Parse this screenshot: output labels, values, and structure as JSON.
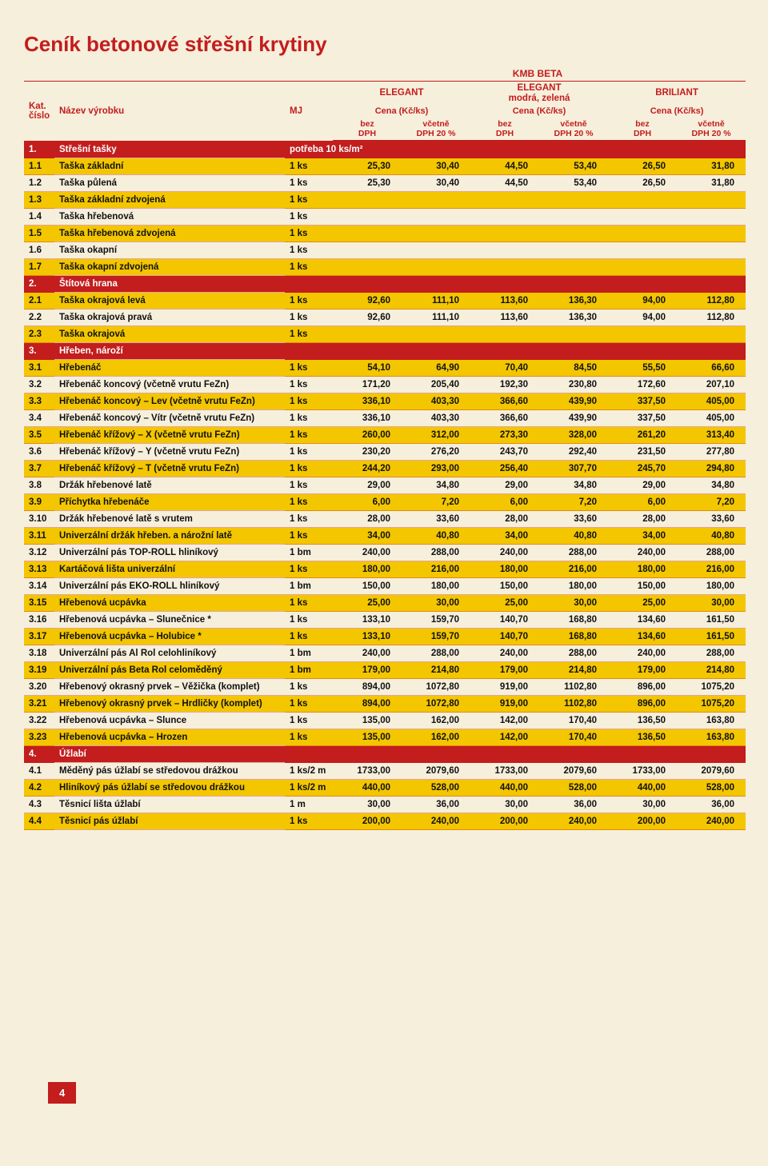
{
  "title": "Ceník betonové střešní krytiny",
  "brand_top": "KMB BETA",
  "header": {
    "kat": "Kat.\nčíslo",
    "nazev": "Název výrobku",
    "mj": "MJ",
    "products": [
      "ELEGANT",
      "ELEGANT\nmodrá, zelená",
      "BRILIANT"
    ],
    "cena": "Cena (Kč/ks)",
    "sub1": "bez\nDPH",
    "sub2": "včetně\nDPH 20 %"
  },
  "page_number": "4",
  "rows": [
    {
      "type": "section",
      "num": "1.",
      "name": "Střešní tašky",
      "mj": "potřeba 10 ks/m²"
    },
    {
      "type": "hl",
      "num": "1.1",
      "name": "Taška základní",
      "mj": "1 ks",
      "v": [
        "25,30",
        "30,40",
        "44,50",
        "53,40",
        "26,50",
        "31,80"
      ]
    },
    {
      "type": "",
      "num": "1.2",
      "name": "Taška půlená",
      "mj": "1 ks",
      "v": [
        "25,30",
        "30,40",
        "44,50",
        "53,40",
        "26,50",
        "31,80"
      ]
    },
    {
      "type": "hl",
      "num": "1.3",
      "name": "Taška základní zdvojená",
      "mj": "1 ks",
      "v": [
        "",
        "",
        "",
        "",
        "",
        ""
      ]
    },
    {
      "type": "",
      "num": "1.4",
      "name": "Taška hřebenová",
      "mj": "1 ks",
      "v": [
        "",
        "",
        "",
        "",
        "",
        ""
      ]
    },
    {
      "type": "hl",
      "num": "1.5",
      "name": "Taška hřebenová zdvojená",
      "mj": "1 ks",
      "v": [
        "",
        "",
        "",
        "",
        "",
        ""
      ]
    },
    {
      "type": "",
      "num": "1.6",
      "name": "Taška okapní",
      "mj": "1 ks",
      "v": [
        "",
        "",
        "",
        "",
        "",
        ""
      ]
    },
    {
      "type": "hl",
      "num": "1.7",
      "name": "Taška okapní zdvojená",
      "mj": "1 ks",
      "v": [
        "",
        "",
        "",
        "",
        "",
        ""
      ]
    },
    {
      "type": "section",
      "num": "2.",
      "name": "Štítová hrana",
      "mj": ""
    },
    {
      "type": "hl",
      "num": "2.1",
      "name": "Taška okrajová levá",
      "mj": "1 ks",
      "v": [
        "92,60",
        "111,10",
        "113,60",
        "136,30",
        "94,00",
        "112,80"
      ]
    },
    {
      "type": "",
      "num": "2.2",
      "name": "Taška okrajová pravá",
      "mj": "1 ks",
      "v": [
        "92,60",
        "111,10",
        "113,60",
        "136,30",
        "94,00",
        "112,80"
      ]
    },
    {
      "type": "hl",
      "num": "2.3",
      "name": "Taška okrajová",
      "mj": "1 ks",
      "v": [
        "",
        "",
        "",
        "",
        "",
        ""
      ]
    },
    {
      "type": "section",
      "num": "3.",
      "name": "Hřeben, nároží",
      "mj": ""
    },
    {
      "type": "hl",
      "num": "3.1",
      "name": "Hřebenáč",
      "mj": "1 ks",
      "v": [
        "54,10",
        "64,90",
        "70,40",
        "84,50",
        "55,50",
        "66,60"
      ]
    },
    {
      "type": "",
      "num": "3.2",
      "name": "Hřebenáč koncový (včetně vrutu FeZn)",
      "mj": "1 ks",
      "v": [
        "171,20",
        "205,40",
        "192,30",
        "230,80",
        "172,60",
        "207,10"
      ]
    },
    {
      "type": "hl",
      "num": "3.3",
      "name": "Hřebenáč koncový – Lev (včetně vrutu FeZn)",
      "mj": "1 ks",
      "v": [
        "336,10",
        "403,30",
        "366,60",
        "439,90",
        "337,50",
        "405,00"
      ]
    },
    {
      "type": "",
      "num": "3.4",
      "name": "Hřebenáč koncový – Vítr (včetně vrutu FeZn)",
      "mj": "1 ks",
      "v": [
        "336,10",
        "403,30",
        "366,60",
        "439,90",
        "337,50",
        "405,00"
      ]
    },
    {
      "type": "hl",
      "num": "3.5",
      "name": "Hřebenáč křížový – X (včetně vrutu FeZn)",
      "mj": "1 ks",
      "v": [
        "260,00",
        "312,00",
        "273,30",
        "328,00",
        "261,20",
        "313,40"
      ]
    },
    {
      "type": "",
      "num": "3.6",
      "name": "Hřebenáč křížový – Y (včetně vrutu FeZn)",
      "mj": "1 ks",
      "v": [
        "230,20",
        "276,20",
        "243,70",
        "292,40",
        "231,50",
        "277,80"
      ]
    },
    {
      "type": "hl",
      "num": "3.7",
      "name": "Hřebenáč křížový – T (včetně vrutu FeZn)",
      "mj": "1 ks",
      "v": [
        "244,20",
        "293,00",
        "256,40",
        "307,70",
        "245,70",
        "294,80"
      ]
    },
    {
      "type": "",
      "num": "3.8",
      "name": "Držák hřebenové latě",
      "mj": "1 ks",
      "v": [
        "29,00",
        "34,80",
        "29,00",
        "34,80",
        "29,00",
        "34,80"
      ]
    },
    {
      "type": "hl",
      "num": "3.9",
      "name": "Příchytka hřebenáče",
      "mj": "1 ks",
      "v": [
        "6,00",
        "7,20",
        "6,00",
        "7,20",
        "6,00",
        "7,20"
      ]
    },
    {
      "type": "",
      "num": "3.10",
      "name": "Držák hřebenové latě s vrutem",
      "mj": "1 ks",
      "v": [
        "28,00",
        "33,60",
        "28,00",
        "33,60",
        "28,00",
        "33,60"
      ]
    },
    {
      "type": "hl",
      "num": "3.11",
      "name": "Univerzální držák hřeben. a nárožní latě",
      "mj": "1 ks",
      "v": [
        "34,00",
        "40,80",
        "34,00",
        "40,80",
        "34,00",
        "40,80"
      ]
    },
    {
      "type": "",
      "num": "3.12",
      "name": "Univerzální pás TOP-ROLL hliníkový",
      "mj": "1 bm",
      "v": [
        "240,00",
        "288,00",
        "240,00",
        "288,00",
        "240,00",
        "288,00"
      ]
    },
    {
      "type": "hl",
      "num": "3.13",
      "name": "Kartáčová lišta univerzální",
      "mj": "1 ks",
      "v": [
        "180,00",
        "216,00",
        "180,00",
        "216,00",
        "180,00",
        "216,00"
      ]
    },
    {
      "type": "",
      "num": "3.14",
      "name": "Univerzální pás EKO-ROLL hliníkový",
      "mj": "1 bm",
      "v": [
        "150,00",
        "180,00",
        "150,00",
        "180,00",
        "150,00",
        "180,00"
      ]
    },
    {
      "type": "hl",
      "num": "3.15",
      "name": "Hřebenová ucpávka",
      "mj": "1 ks",
      "v": [
        "25,00",
        "30,00",
        "25,00",
        "30,00",
        "25,00",
        "30,00"
      ]
    },
    {
      "type": "",
      "num": "3.16",
      "name": "Hřebenová ucpávka – Slunečnice *",
      "mj": "1 ks",
      "v": [
        "133,10",
        "159,70",
        "140,70",
        "168,80",
        "134,60",
        "161,50"
      ]
    },
    {
      "type": "hl",
      "num": "3.17",
      "name": "Hřebenová ucpávka – Holubice *",
      "mj": "1 ks",
      "v": [
        "133,10",
        "159,70",
        "140,70",
        "168,80",
        "134,60",
        "161,50"
      ]
    },
    {
      "type": "",
      "num": "3.18",
      "name": "Univerzální pás Al Rol celohliníkový",
      "mj": "1 bm",
      "v": [
        "240,00",
        "288,00",
        "240,00",
        "288,00",
        "240,00",
        "288,00"
      ]
    },
    {
      "type": "hl",
      "num": "3.19",
      "name": "Univerzální pás Beta Rol celoměděný",
      "mj": "1 bm",
      "v": [
        "179,00",
        "214,80",
        "179,00",
        "214,80",
        "179,00",
        "214,80"
      ]
    },
    {
      "type": "",
      "num": "3.20",
      "name": "Hřebenový okrasný prvek – Věžička (komplet)",
      "mj": "1 ks",
      "v": [
        "894,00",
        "1072,80",
        "919,00",
        "1102,80",
        "896,00",
        "1075,20"
      ]
    },
    {
      "type": "hl",
      "num": "3.21",
      "name": "Hřebenový okrasný prvek – Hrdličky (komplet)",
      "mj": "1 ks",
      "v": [
        "894,00",
        "1072,80",
        "919,00",
        "1102,80",
        "896,00",
        "1075,20"
      ]
    },
    {
      "type": "",
      "num": "3.22",
      "name": "Hřebenová ucpávka – Slunce",
      "mj": "1 ks",
      "v": [
        "135,00",
        "162,00",
        "142,00",
        "170,40",
        "136,50",
        "163,80"
      ]
    },
    {
      "type": "hl",
      "num": "3.23",
      "name": "Hřebenová ucpávka – Hrozen",
      "mj": "1 ks",
      "v": [
        "135,00",
        "162,00",
        "142,00",
        "170,40",
        "136,50",
        "163,80"
      ]
    },
    {
      "type": "section",
      "num": "4.",
      "name": "Úžlabí",
      "mj": ""
    },
    {
      "type": "",
      "num": "4.1",
      "name": "Měděný pás úžlabí se středovou drážkou",
      "mj": "1 ks/2 m",
      "v": [
        "1733,00",
        "2079,60",
        "1733,00",
        "2079,60",
        "1733,00",
        "2079,60"
      ]
    },
    {
      "type": "hl",
      "num": "4.2",
      "name": "Hliníkový pás úžlabí se středovou drážkou",
      "mj": "1 ks/2 m",
      "v": [
        "440,00",
        "528,00",
        "440,00",
        "528,00",
        "440,00",
        "528,00"
      ]
    },
    {
      "type": "",
      "num": "4.3",
      "name": "Těsnicí lišta úžlabí",
      "mj": "1 m",
      "v": [
        "30,00",
        "36,00",
        "30,00",
        "36,00",
        "30,00",
        "36,00"
      ]
    },
    {
      "type": "hl",
      "num": "4.4",
      "name": "Těsnicí pás úžlabí",
      "mj": "1 ks",
      "v": [
        "200,00",
        "240,00",
        "200,00",
        "240,00",
        "200,00",
        "240,00"
      ]
    }
  ]
}
